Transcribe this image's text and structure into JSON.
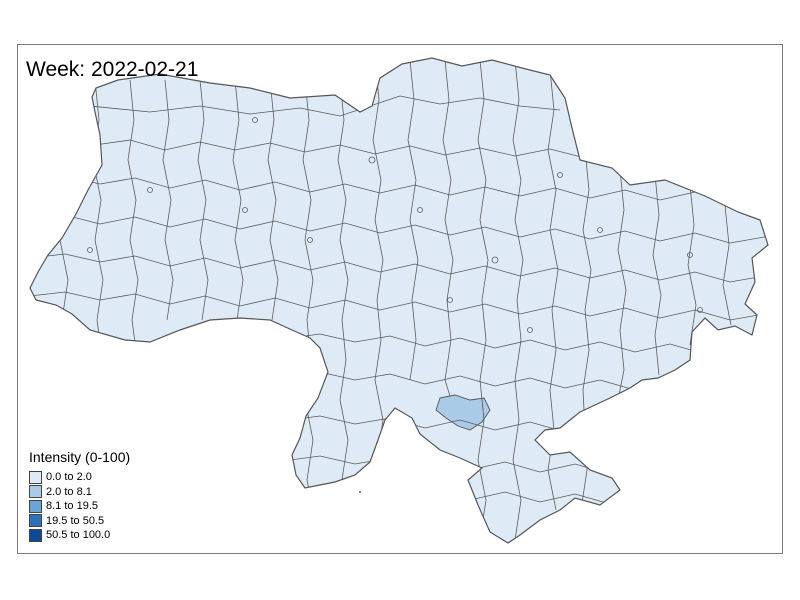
{
  "map": {
    "title": "Week: 2022-02-21",
    "legend": {
      "title": "Intensity (0-100)",
      "items": [
        {
          "label": "0.0 to 2.0",
          "color": "#deebf7"
        },
        {
          "label": "2.0 to 8.1",
          "color": "#a9cbe7"
        },
        {
          "label": "8.1 to 19.5",
          "color": "#6aa5d5"
        },
        {
          "label": "19.5 to 50.5",
          "color": "#2d72b6"
        },
        {
          "label": "50.5 to 100.0",
          "color": "#0b4a98"
        }
      ]
    },
    "colors": {
      "fill_low": "#deebf7",
      "fill_highlight": "#a9cbe7",
      "border": "#555555"
    }
  }
}
